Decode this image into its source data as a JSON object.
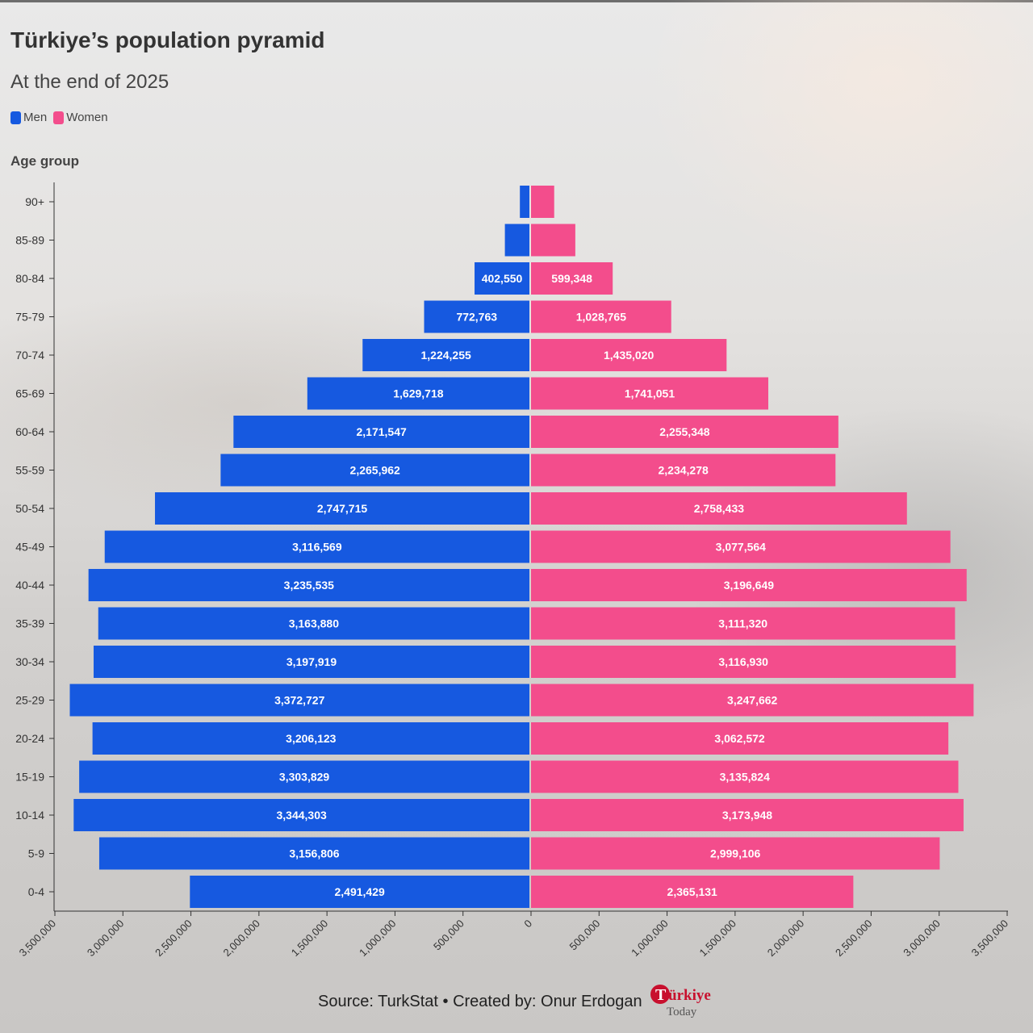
{
  "title": "Türkiye’s population pyramid",
  "subtitle": "At the end of 2025",
  "legend": [
    {
      "label": "Men",
      "color": "#1659e0"
    },
    {
      "label": "Women",
      "color": "#f34d8c"
    }
  ],
  "footer": "Source: TurkStat • Created by: Onur Erdogan",
  "logo_text": "Türkiye Today",
  "chart_data": {
    "type": "bar",
    "orientation": "horizontal-diverging",
    "ylabel": "Age group",
    "categories": [
      "90+",
      "85-89",
      "80-84",
      "75-79",
      "70-74",
      "65-69",
      "60-64",
      "55-59",
      "50-54",
      "45-49",
      "40-44",
      "35-39",
      "30-34",
      "25-29",
      "20-24",
      "15-19",
      "10-14",
      "5-9",
      "0-4"
    ],
    "series": [
      {
        "name": "Men",
        "color": "#1659e0",
        "values": [
          70000,
          180000,
          402550,
          772763,
          1224255,
          1629718,
          2171547,
          2265962,
          2747715,
          3116569,
          3235535,
          3163880,
          3197919,
          3372727,
          3206123,
          3303829,
          3344303,
          3156806,
          2491429
        ],
        "labels": [
          "",
          "",
          "402,550",
          "772,763",
          "1,224,255",
          "1,629,718",
          "2,171,547",
          "2,265,962",
          "2,747,715",
          "3,116,569",
          "3,235,535",
          "3,163,880",
          "3,197,919",
          "3,372,727",
          "3,206,123",
          "3,303,829",
          "3,344,303",
          "3,156,806",
          "2,491,429"
        ]
      },
      {
        "name": "Women",
        "color": "#f34d8c",
        "values": [
          170000,
          325000,
          599348,
          1028765,
          1435020,
          1741051,
          2255348,
          2234278,
          2758433,
          3077564,
          3196649,
          3111320,
          3116930,
          3247662,
          3062572,
          3135824,
          3173948,
          2999106,
          2365131
        ],
        "labels": [
          "",
          "",
          "599,348",
          "1,028,765",
          "1,435,020",
          "1,741,051",
          "2,255,348",
          "2,234,278",
          "2,758,433",
          "3,077,564",
          "3,196,649",
          "3,111,320",
          "3,116,930",
          "3,247,662",
          "3,062,572",
          "3,135,824",
          "3,173,948",
          "2,999,106",
          "2,365,131"
        ]
      }
    ],
    "xlim": [
      -3500000,
      3500000
    ],
    "xticks": [
      "3,500,000",
      "3,000,000",
      "2,500,000",
      "2,000,000",
      "1,500,000",
      "1,000,000",
      "500,000",
      "0",
      "500,000",
      "1,000,000",
      "1,500,000",
      "2,000,000",
      "2,500,000",
      "3,000,000",
      "3,500,000"
    ],
    "grid": false
  }
}
